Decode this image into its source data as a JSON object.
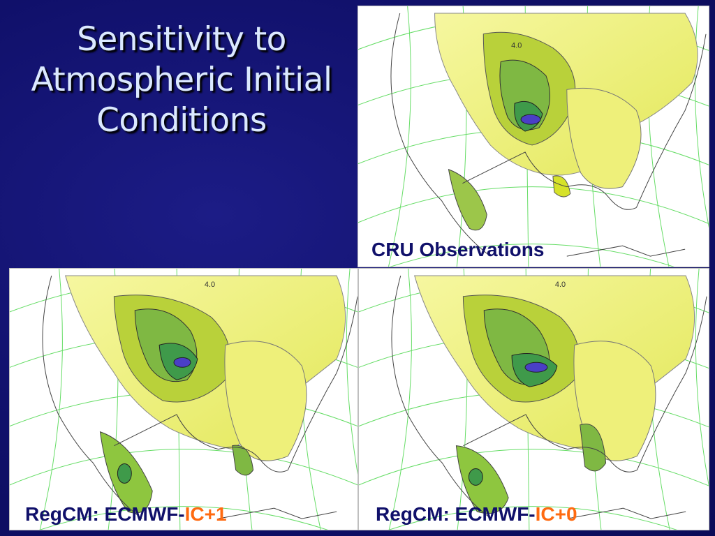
{
  "slide": {
    "title_lines": [
      "Sensitivity to",
      "Atmospheric Initial",
      "Conditions"
    ]
  },
  "panels": {
    "cru": {
      "caption": "CRU Observations",
      "contour_label": "4.0"
    },
    "ic1": {
      "caption_prefix": "RegCM: ECMWF-",
      "caption_highlight": "IC+1",
      "contour_label": "4.0"
    },
    "ic0": {
      "caption_prefix": "RegCM: ECMWF-",
      "caption_highlight": "IC+0",
      "contour_label": "4.0"
    }
  },
  "colors": {
    "background": "#12126e",
    "title_text": "#dbe9ff",
    "caption_text": "#10106a",
    "caption_highlight": "#ff6a10",
    "graticule": "#66dd66",
    "contour_light": "#f3f58a",
    "contour_mid": "#d6e22a",
    "contour_green": "#8ec63f",
    "contour_dark": "#3f9a4a",
    "contour_peak": "#4a3fc6"
  }
}
